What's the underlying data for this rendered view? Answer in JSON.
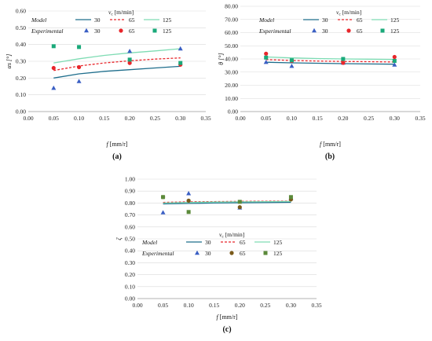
{
  "figure": {
    "panel_labels": [
      "(a)",
      "(b)",
      "(c)"
    ]
  },
  "legend": {
    "vc_label": "v",
    "vc_sub": "c",
    "vc_unit": "[m/min]",
    "model_label": "Model",
    "experimental_label": "Experimental",
    "speeds": [
      "30",
      "65",
      "125"
    ]
  },
  "colors": {
    "30": "#1f6e8c",
    "65": "#e8262b",
    "125": "#7fdcb4",
    "30_exp": "#3a5fc4",
    "65_exp": "#e8262b",
    "125_exp": "#1aa97a",
    "c_65_exp": "#7a5a1a",
    "c_125_exp": "#5b8a3a"
  },
  "chart_data": [
    {
      "type": "line",
      "panel": "(a)",
      "xlabel": "f [mm/r]",
      "ylabel": "αs [°]",
      "xlim": [
        0.0,
        0.35
      ],
      "ylim": [
        0.0,
        0.6
      ],
      "xticks": [
        "0.00",
        "0.05",
        "0.10",
        "0.15",
        "0.20",
        "0.25",
        "0.30",
        "0.35"
      ],
      "yticks": [
        "0.00",
        "0.10",
        "0.20",
        "0.30",
        "0.40",
        "0.50",
        "0.60"
      ],
      "grid": true,
      "model_series": [
        {
          "name": "30",
          "x": [
            0.05,
            0.1,
            0.15,
            0.2,
            0.25,
            0.3
          ],
          "y": [
            0.2,
            0.225,
            0.24,
            0.25,
            0.26,
            0.27
          ]
        },
        {
          "name": "65",
          "x": [
            0.05,
            0.1,
            0.15,
            0.2,
            0.25,
            0.3
          ],
          "y": [
            0.245,
            0.272,
            0.29,
            0.303,
            0.313,
            0.32
          ]
        },
        {
          "name": "125",
          "x": [
            0.05,
            0.1,
            0.15,
            0.2,
            0.25,
            0.3
          ],
          "y": [
            0.29,
            0.315,
            0.335,
            0.35,
            0.362,
            0.375
          ]
        }
      ],
      "experimental_series": [
        {
          "name": "30",
          "marker": "triangle",
          "x": [
            0.05,
            0.1,
            0.2,
            0.3
          ],
          "y": [
            0.14,
            0.18,
            0.36,
            0.375
          ]
        },
        {
          "name": "65",
          "marker": "circle",
          "x": [
            0.05,
            0.1,
            0.2,
            0.3
          ],
          "y": [
            0.26,
            0.265,
            0.29,
            0.28
          ]
        },
        {
          "name": "125",
          "marker": "square",
          "x": [
            0.05,
            0.1,
            0.2,
            0.3
          ],
          "y": [
            0.39,
            0.385,
            0.31,
            0.29
          ]
        }
      ]
    },
    {
      "type": "line",
      "panel": "(b)",
      "xlabel": "f [mm/r]",
      "ylabel": "θ [°]",
      "xlim": [
        0.0,
        0.35
      ],
      "ylim": [
        0.0,
        80.0
      ],
      "xticks": [
        "0.00",
        "0.05",
        "0.10",
        "0.15",
        "0.20",
        "0.25",
        "0.30",
        "0.35"
      ],
      "yticks": [
        "0.00",
        "10.00",
        "20.00",
        "30.00",
        "40.00",
        "50.00",
        "60.00",
        "70.00",
        "80.00"
      ],
      "grid": true,
      "model_series": [
        {
          "name": "30",
          "x": [
            0.05,
            0.1,
            0.15,
            0.2,
            0.25,
            0.3
          ],
          "y": [
            37.5,
            37.0,
            36.7,
            36.4,
            36.2,
            36.0
          ]
        },
        {
          "name": "65",
          "x": [
            0.05,
            0.1,
            0.15,
            0.2,
            0.25,
            0.3
          ],
          "y": [
            39.5,
            38.8,
            38.4,
            38.1,
            37.9,
            37.7
          ]
        },
        {
          "name": "125",
          "x": [
            0.05,
            0.1,
            0.15,
            0.2,
            0.25,
            0.3
          ],
          "y": [
            41.5,
            40.8,
            40.3,
            40.0,
            39.8,
            39.6
          ]
        }
      ],
      "experimental_series": [
        {
          "name": "30",
          "marker": "triangle",
          "x": [
            0.05,
            0.1,
            0.2,
            0.3
          ],
          "y": [
            37.5,
            34.5,
            37.0,
            35.5
          ]
        },
        {
          "name": "65",
          "marker": "circle",
          "x": [
            0.05,
            0.1,
            0.2,
            0.3
          ],
          "y": [
            44.0,
            38.5,
            37.0,
            41.5
          ]
        },
        {
          "name": "125",
          "marker": "square",
          "x": [
            0.05,
            0.1,
            0.2,
            0.3
          ],
          "y": [
            41.0,
            39.0,
            40.0,
            38.5
          ]
        }
      ]
    },
    {
      "type": "line",
      "panel": "(c)",
      "xlabel": "f [mm/r]",
      "ylabel": "ζ",
      "xlim": [
        0.0,
        0.35
      ],
      "ylim": [
        0.0,
        1.0
      ],
      "xticks": [
        "0.00",
        "0.05",
        "0.10",
        "0.15",
        "0.20",
        "0.25",
        "0.30",
        "0.35"
      ],
      "yticks": [
        "0.00",
        "0.10",
        "0.20",
        "0.30",
        "0.40",
        "0.50",
        "0.60",
        "0.70",
        "0.80",
        "0.90",
        "1.00"
      ],
      "grid": true,
      "model_series": [
        {
          "name": "30",
          "x": [
            0.05,
            0.1,
            0.15,
            0.2,
            0.25,
            0.3
          ],
          "y": [
            0.793,
            0.797,
            0.8,
            0.802,
            0.804,
            0.806
          ]
        },
        {
          "name": "65",
          "x": [
            0.05,
            0.1,
            0.15,
            0.2,
            0.25,
            0.3
          ],
          "y": [
            0.805,
            0.81,
            0.812,
            0.814,
            0.815,
            0.816
          ]
        },
        {
          "name": "125",
          "x": [
            0.05,
            0.1,
            0.15,
            0.2,
            0.25,
            0.3
          ],
          "y": [
            0.8,
            0.805,
            0.808,
            0.81,
            0.812,
            0.813
          ]
        }
      ],
      "experimental_series": [
        {
          "name": "30",
          "marker": "triangle",
          "x": [
            0.05,
            0.1,
            0.2,
            0.3
          ],
          "y": [
            0.72,
            0.88,
            0.76,
            0.84
          ]
        },
        {
          "name": "65",
          "marker": "circle",
          "x": [
            0.05,
            0.1,
            0.2,
            0.3
          ],
          "y": [
            0.85,
            0.82,
            0.765,
            0.83
          ]
        },
        {
          "name": "125",
          "marker": "square",
          "x": [
            0.05,
            0.1,
            0.2,
            0.3
          ],
          "y": [
            0.85,
            0.725,
            0.81,
            0.85
          ]
        }
      ]
    }
  ]
}
